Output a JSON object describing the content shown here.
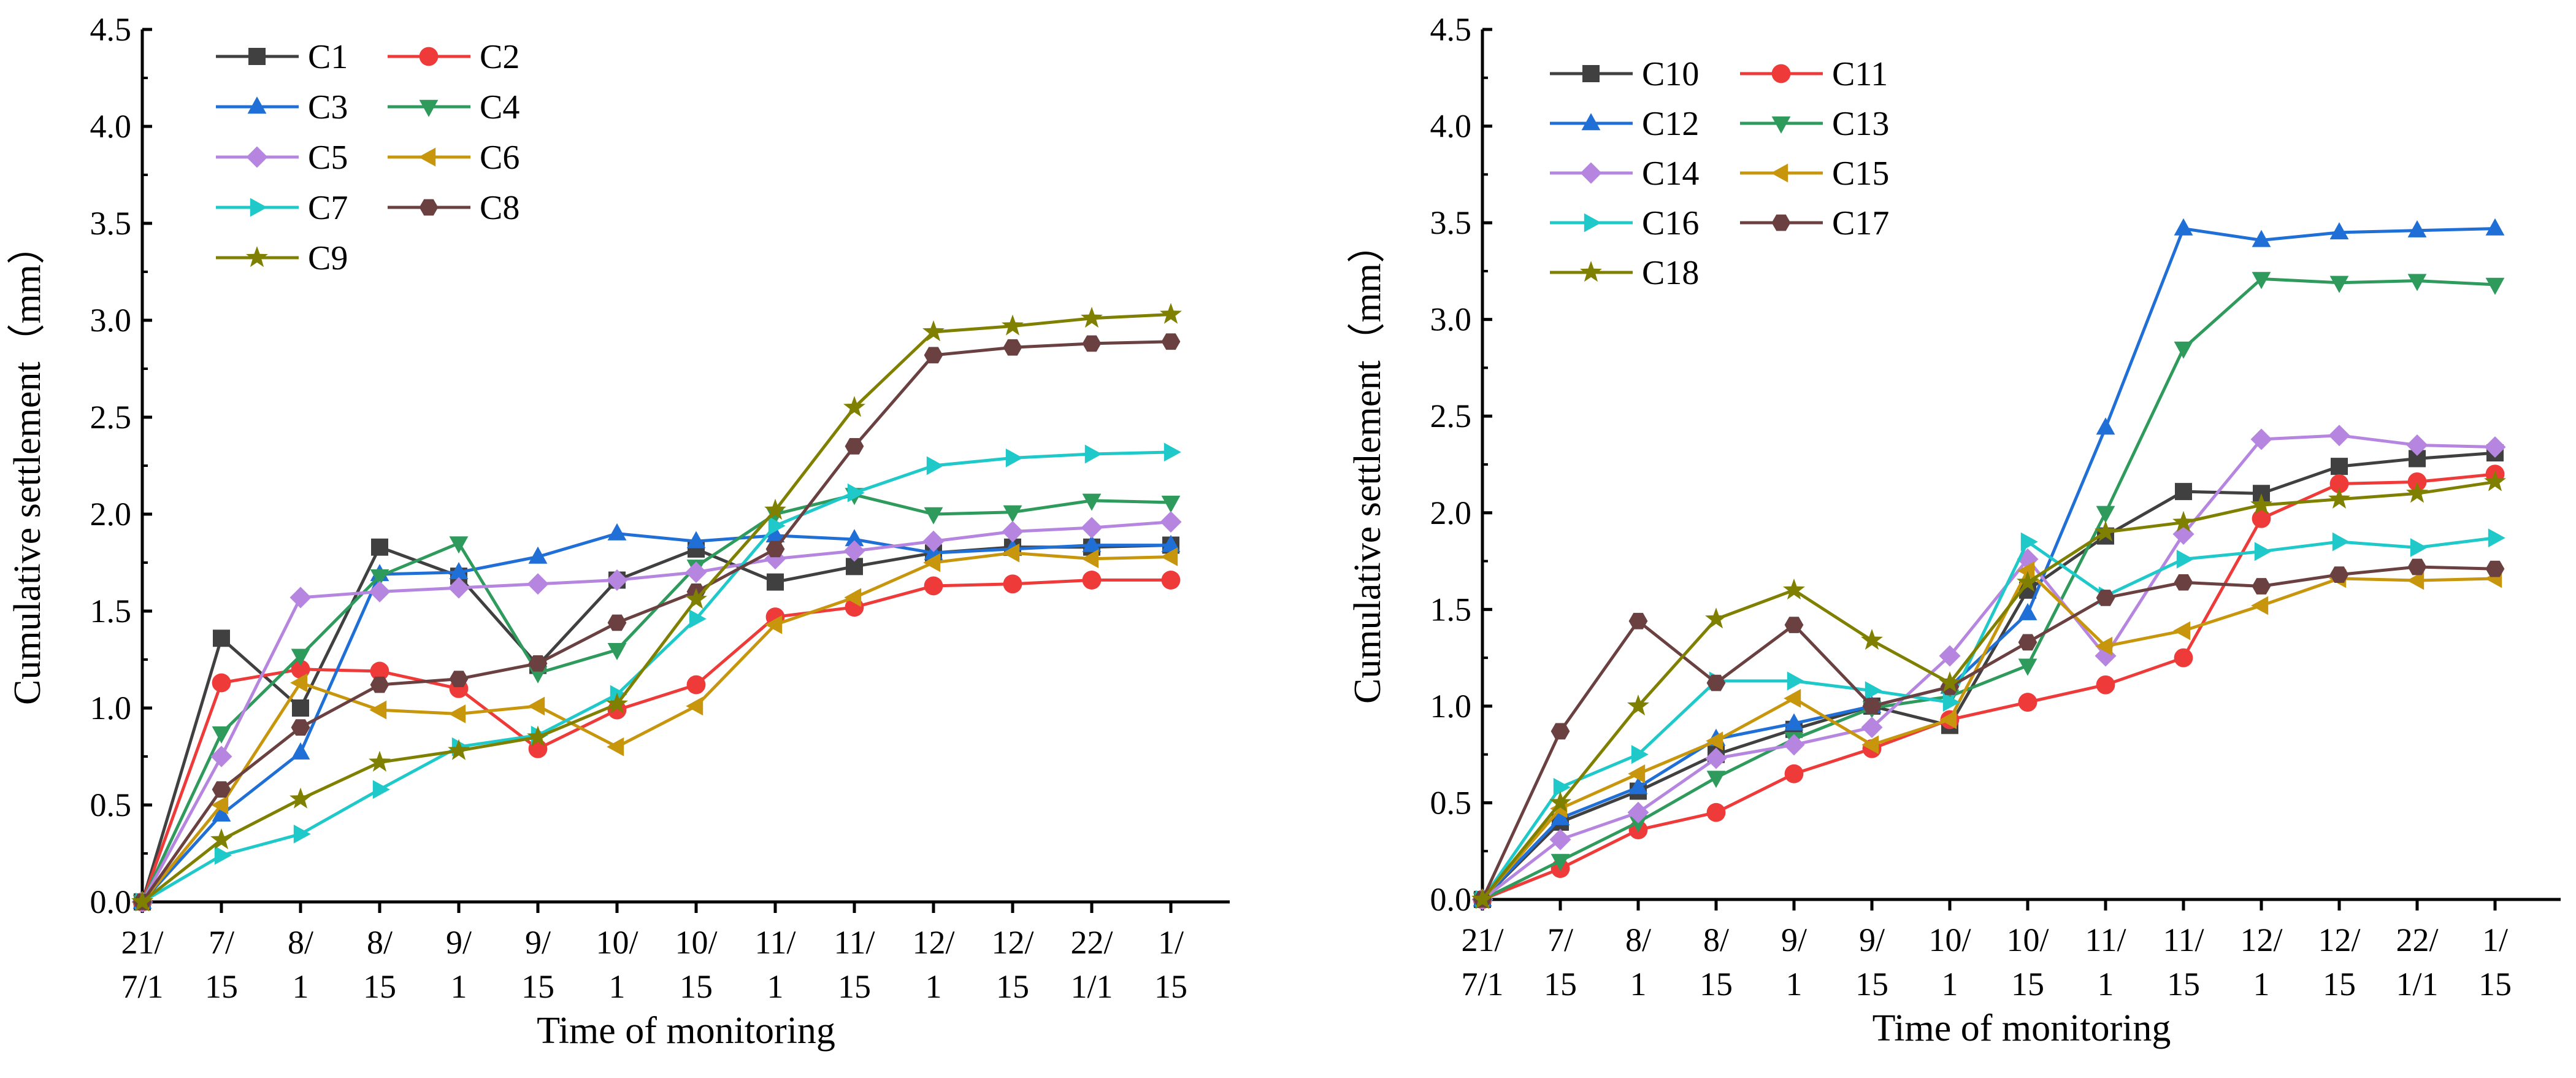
{
  "chart_data": [
    {
      "type": "line",
      "xlabel": "Time of monitoring",
      "ylabel": "Cumulative settlement（mm）",
      "ylim": [
        0,
        4.5
      ],
      "yticks": [
        "0.0",
        "0.5",
        "1.0",
        "1.5",
        "2.0",
        "2.5",
        "3.0",
        "3.5",
        "4.0",
        "4.5"
      ],
      "categories": [
        [
          "21/",
          "7/1"
        ],
        [
          "7/",
          "15"
        ],
        [
          "8/",
          "1"
        ],
        [
          "8/",
          "15"
        ],
        [
          "9/",
          "1"
        ],
        [
          "9/",
          "15"
        ],
        [
          "10/",
          "1"
        ],
        [
          "10/",
          "15"
        ],
        [
          "11/",
          "1"
        ],
        [
          "11/",
          "15"
        ],
        [
          "12/",
          "1"
        ],
        [
          "12/",
          "15"
        ],
        [
          "22/",
          "1/1"
        ],
        [
          "1/",
          "15"
        ]
      ],
      "legend_position": "top-left",
      "series": [
        {
          "name": "C1",
          "color": "#404040",
          "marker": "square",
          "values": [
            0,
            1.36,
            1.0,
            1.83,
            1.68,
            1.22,
            1.66,
            1.82,
            1.65,
            1.73,
            1.8,
            1.83,
            1.83,
            1.84
          ]
        },
        {
          "name": "C2",
          "color": "#ef3a3a",
          "marker": "circle",
          "values": [
            0,
            1.13,
            1.2,
            1.19,
            1.1,
            0.79,
            0.99,
            1.12,
            1.47,
            1.52,
            1.63,
            1.64,
            1.66,
            1.66
          ]
        },
        {
          "name": "C3",
          "color": "#1f6fd6",
          "marker": "triangle-up",
          "values": [
            0,
            0.45,
            0.77,
            1.69,
            1.7,
            1.78,
            1.9,
            1.86,
            1.89,
            1.87,
            1.8,
            1.82,
            1.84,
            1.84
          ]
        },
        {
          "name": "C4",
          "color": "#2e9a5c",
          "marker": "triangle-down",
          "values": [
            0,
            0.87,
            1.27,
            1.68,
            1.85,
            1.18,
            1.3,
            1.73,
            2.0,
            2.1,
            2.0,
            2.01,
            2.07,
            2.06
          ]
        },
        {
          "name": "C5",
          "color": "#b585e0",
          "marker": "diamond",
          "values": [
            0,
            0.75,
            1.57,
            1.6,
            1.62,
            1.64,
            1.66,
            1.7,
            1.77,
            1.81,
            1.86,
            1.91,
            1.93,
            1.96
          ]
        },
        {
          "name": "C6",
          "color": "#c8960c",
          "marker": "triangle-left",
          "values": [
            0,
            0.5,
            1.13,
            0.99,
            0.97,
            1.01,
            0.8,
            1.01,
            1.43,
            1.57,
            1.75,
            1.8,
            1.77,
            1.78
          ]
        },
        {
          "name": "C7",
          "color": "#1fc9c9",
          "marker": "triangle-right",
          "values": [
            0,
            0.24,
            0.35,
            0.58,
            0.8,
            0.86,
            1.07,
            1.46,
            1.94,
            2.11,
            2.25,
            2.29,
            2.31,
            2.32
          ]
        },
        {
          "name": "C8",
          "color": "#6b4040",
          "marker": "hexagon",
          "values": [
            0,
            0.58,
            0.9,
            1.12,
            1.15,
            1.23,
            1.44,
            1.6,
            1.82,
            2.35,
            2.82,
            2.86,
            2.88,
            2.89
          ]
        },
        {
          "name": "C9",
          "color": "#808000",
          "marker": "star",
          "values": [
            0,
            0.32,
            0.53,
            0.72,
            0.78,
            0.85,
            1.02,
            1.56,
            2.02,
            2.55,
            2.94,
            2.97,
            3.01,
            3.03
          ]
        }
      ]
    },
    {
      "type": "line",
      "xlabel": "Time of monitoring",
      "ylabel": "Cumulative settlement（mm）",
      "ylim": [
        0,
        4.5
      ],
      "yticks": [
        "0.0",
        "0.5",
        "1.0",
        "1.5",
        "2.0",
        "2.5",
        "3.0",
        "3.5",
        "4.0",
        "4.5"
      ],
      "categories": [
        [
          "21/",
          "7/1"
        ],
        [
          "7/",
          "15"
        ],
        [
          "8/",
          "1"
        ],
        [
          "8/",
          "15"
        ],
        [
          "9/",
          "1"
        ],
        [
          "9/",
          "15"
        ],
        [
          "10/",
          "1"
        ],
        [
          "10/",
          "15"
        ],
        [
          "11/",
          "1"
        ],
        [
          "11/",
          "15"
        ],
        [
          "12/",
          "1"
        ],
        [
          "12/",
          "15"
        ],
        [
          "22/",
          "1/1"
        ],
        [
          "1/",
          "15"
        ]
      ],
      "legend_position": "top-left",
      "series": [
        {
          "name": "C10",
          "color": "#404040",
          "marker": "square",
          "values": [
            0,
            0.4,
            0.56,
            0.75,
            0.88,
            1.0,
            0.9,
            1.6,
            1.88,
            2.11,
            2.1,
            2.24,
            2.28,
            2.31
          ]
        },
        {
          "name": "C11",
          "color": "#ef3a3a",
          "marker": "circle",
          "values": [
            0,
            0.16,
            0.36,
            0.45,
            0.65,
            0.78,
            0.93,
            1.02,
            1.11,
            1.25,
            1.97,
            2.15,
            2.16,
            2.2
          ]
        },
        {
          "name": "C12",
          "color": "#1f6fd6",
          "marker": "triangle-up",
          "values": [
            0,
            0.42,
            0.58,
            0.83,
            0.91,
            1.0,
            1.1,
            1.48,
            2.44,
            3.47,
            3.41,
            3.45,
            3.46,
            3.47
          ]
        },
        {
          "name": "C13",
          "color": "#2e9a5c",
          "marker": "triangle-down",
          "values": [
            0,
            0.2,
            0.4,
            0.63,
            0.83,
            0.99,
            1.05,
            1.21,
            2.0,
            2.85,
            3.21,
            3.19,
            3.2,
            3.18
          ]
        },
        {
          "name": "C14",
          "color": "#b585e0",
          "marker": "diamond",
          "values": [
            0,
            0.31,
            0.45,
            0.73,
            0.8,
            0.89,
            1.26,
            1.76,
            1.26,
            1.89,
            2.38,
            2.4,
            2.35,
            2.34
          ]
        },
        {
          "name": "C15",
          "color": "#c8960c",
          "marker": "triangle-left",
          "values": [
            0,
            0.47,
            0.65,
            0.82,
            1.04,
            0.8,
            0.93,
            1.7,
            1.31,
            1.39,
            1.52,
            1.66,
            1.65,
            1.66
          ]
        },
        {
          "name": "C16",
          "color": "#1fc9c9",
          "marker": "triangle-right",
          "values": [
            0,
            0.58,
            0.75,
            1.13,
            1.13,
            1.08,
            1.02,
            1.85,
            1.57,
            1.76,
            1.8,
            1.85,
            1.82,
            1.87
          ]
        },
        {
          "name": "C17",
          "color": "#6b4040",
          "marker": "hexagon",
          "values": [
            0,
            0.87,
            1.44,
            1.12,
            1.42,
            1.0,
            1.1,
            1.33,
            1.56,
            1.64,
            1.62,
            1.68,
            1.72,
            1.71
          ]
        },
        {
          "name": "C18",
          "color": "#808000",
          "marker": "star",
          "values": [
            0,
            0.5,
            1.0,
            1.45,
            1.6,
            1.34,
            1.12,
            1.64,
            1.9,
            1.95,
            2.04,
            2.07,
            2.1,
            2.16
          ]
        }
      ]
    }
  ]
}
